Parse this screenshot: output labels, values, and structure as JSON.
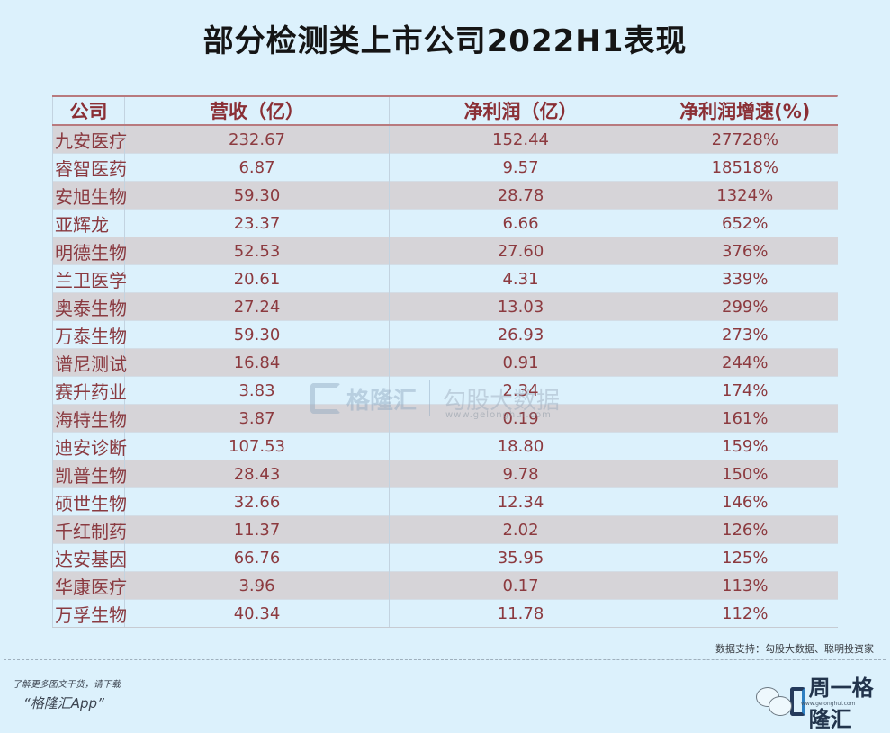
{
  "title": "部分检测类上市公司2022H1表现",
  "table": {
    "headers": [
      "公司",
      "营收（亿）",
      "净利润（亿）",
      "净利润增速(%)"
    ],
    "rows": [
      [
        "九安医疗",
        "232.67",
        "152.44",
        "27728%"
      ],
      [
        "睿智医药",
        "6.87",
        "9.57",
        "18518%"
      ],
      [
        "安旭生物",
        "59.30",
        "28.78",
        "1324%"
      ],
      [
        "亚辉龙",
        "23.37",
        "6.66",
        "652%"
      ],
      [
        "明德生物",
        "52.53",
        "27.60",
        "376%"
      ],
      [
        "兰卫医学",
        "20.61",
        "4.31",
        "339%"
      ],
      [
        "奥泰生物",
        "27.24",
        "13.03",
        "299%"
      ],
      [
        "万泰生物",
        "59.30",
        "26.93",
        "273%"
      ],
      [
        "谱尼测试",
        "16.84",
        "0.91",
        "244%"
      ],
      [
        "赛升药业",
        "3.83",
        "2.34",
        "174%"
      ],
      [
        "海特生物",
        "3.87",
        "0.19",
        "161%"
      ],
      [
        "迪安诊断",
        "107.53",
        "18.80",
        "159%"
      ],
      [
        "凯普生物",
        "28.43",
        "9.78",
        "150%"
      ],
      [
        "硕世生物",
        "32.66",
        "12.34",
        "146%"
      ],
      [
        "千红制药",
        "11.37",
        "2.02",
        "126%"
      ],
      [
        "达安基因",
        "66.76",
        "35.95",
        "125%"
      ],
      [
        "华康医疗",
        "3.96",
        "0.17",
        "113%"
      ],
      [
        "万孚生物",
        "40.34",
        "11.78",
        "112%"
      ]
    ]
  },
  "watermark": {
    "logo_icon": "gelonghui-logo-icon",
    "name": "格隆汇",
    "sub": "勾股大数据",
    "url": "www.gelonghui.com"
  },
  "source": "数据支持：勾股大数据、聪明投资家",
  "promo": {
    "line1": "了解更多图文干货，请下载",
    "line2": "“格隆汇App”"
  },
  "brand": {
    "icon": "wechat-icon",
    "name": "周一格隆汇",
    "url": "www.gelonghui.com"
  },
  "colors": {
    "background": "#dcf1fc",
    "text_red": "#8c3a3f",
    "stripe_gray": "#d6d4d8",
    "header_rule": "#b87a7e"
  }
}
